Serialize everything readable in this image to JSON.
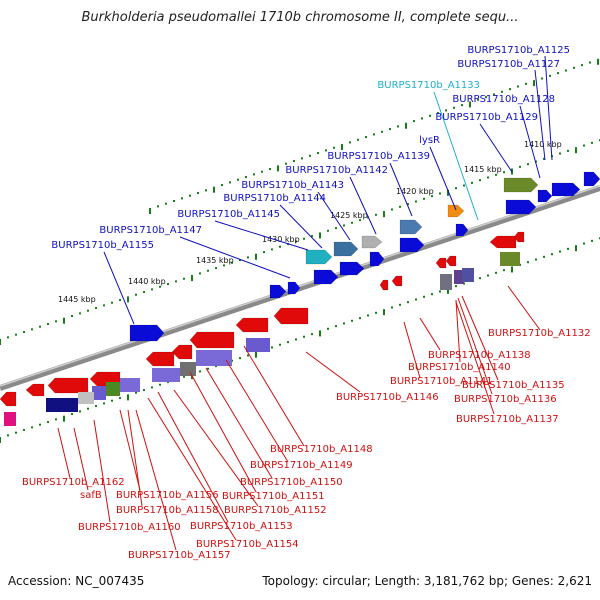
{
  "title": "Burkholderia pseudomallei 1710b chromosome II, complete sequ...",
  "footer": {
    "accession": "Accession: NC_007435",
    "topology": "Topology: circular; Length: 3,181,762 bp; Genes: 2,621"
  },
  "colors": {
    "forward_gene": "#0b0bd8",
    "reverse_gene": "#e10a0a",
    "forward_label": "#1010c0",
    "reverse_label": "#d01010",
    "special_label": "#20b0d0",
    "tick": "#148014",
    "backbone": "#8a8a8a"
  },
  "kbp_labels": [
    "1410 kbp",
    "1415 kbp",
    "1420 kbp",
    "1425 kbp",
    "1430 kbp",
    "1435 kbp",
    "1440 kbp",
    "1445 kbp"
  ],
  "top_labels": [
    "BURPS1710b_A1125",
    "BURPS1710b_A1127",
    "BURPS1710b_A1133",
    "BURPS1710b_A1128",
    "BURPS1710b_A1129",
    "lysR",
    "BURPS1710b_A1139",
    "BURPS1710b_A1142",
    "BURPS1710b_A1143",
    "BURPS1710b_A1144",
    "BURPS1710b_A1145",
    "BURPS1710b_A1147",
    "BURPS1710b_A1155"
  ],
  "right_labels": [
    "BURPS1710b_A1132",
    "BURPS1710b_A1138",
    "BURPS1710b_A1140",
    "BURPS1710b_A1141",
    "BURPS1710b_A1135",
    "BURPS1710b_A1136",
    "BURPS1710b_A1137",
    "BURPS1710b_A1146"
  ],
  "bottom_labels": [
    "BURPS1710b_A1148",
    "BURPS1710b_A1149",
    "BURPS1710b_A1150",
    "BURPS1710b_A1162",
    "safB",
    "BURPS1710b_A1156",
    "BURPS1710b_A1151",
    "BURPS1710b_A1158",
    "BURPS1710b_A1152",
    "BURPS1710b_A1160",
    "BURPS1710b_A1153",
    "BURPS1710b_A1154",
    "BURPS1710b_A1157"
  ]
}
